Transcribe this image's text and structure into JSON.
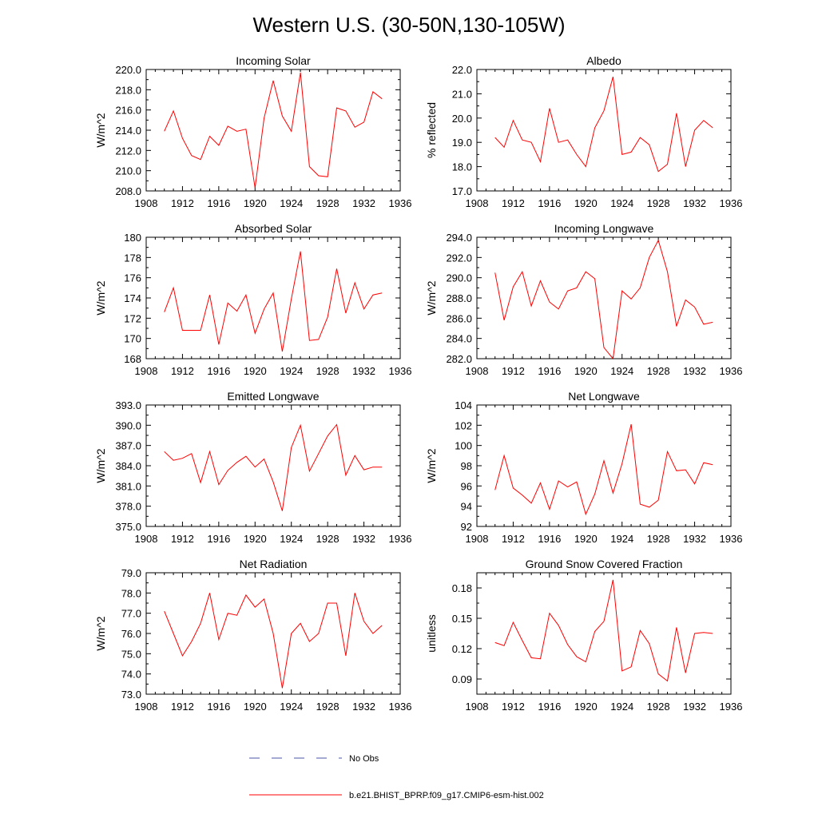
{
  "figure": {
    "title": "Western U.S. (30-50N,130-105W)"
  },
  "legend": {
    "entries": [
      {
        "label": "No Obs",
        "color": "#4b55a6",
        "dash": true
      },
      {
        "label": "b.e21.BHIST_BPRP.f09_g17.CMIP6-esm-hist.002",
        "color": "#ff0000",
        "dash": false
      }
    ]
  },
  "chart_data": [
    {
      "type": "line",
      "title": "Incoming Solar",
      "ylabel": "W/m^2",
      "xlim": [
        1908,
        1936
      ],
      "ylim": [
        208.0,
        220.0
      ],
      "xticks": [
        "1908",
        "1912",
        "1916",
        "1920",
        "1924",
        "1928",
        "1932",
        "1936"
      ],
      "yticks": [
        "208.0",
        "210.0",
        "212.0",
        "214.0",
        "216.0",
        "218.0",
        "220.0"
      ],
      "x": [
        1910,
        1911,
        1912,
        1913,
        1914,
        1915,
        1916,
        1917,
        1918,
        1919,
        1920,
        1921,
        1922,
        1923,
        1924,
        1925,
        1926,
        1927,
        1928,
        1929,
        1930,
        1931,
        1932,
        1933,
        1934
      ],
      "series": [
        {
          "name": "b.e21.BHIST_BPRP.f09_g17.CMIP6-esm-hist.002",
          "color": "#ff0000",
          "values": [
            213.9,
            215.9,
            213.2,
            211.5,
            211.1,
            213.4,
            212.5,
            214.4,
            213.9,
            214.1,
            208.3,
            215.2,
            218.9,
            215.4,
            213.9,
            219.7,
            210.4,
            209.5,
            209.4,
            216.2,
            215.9,
            214.3,
            214.8,
            217.8,
            217.1
          ]
        }
      ]
    },
    {
      "type": "line",
      "title": "Albedo",
      "ylabel": "% reflected",
      "xlim": [
        1908,
        1936
      ],
      "ylim": [
        17.0,
        22.0
      ],
      "xticks": [
        "1908",
        "1912",
        "1916",
        "1920",
        "1924",
        "1928",
        "1932",
        "1936"
      ],
      "yticks": [
        "17.0",
        "18.0",
        "19.0",
        "20.0",
        "21.0",
        "22.0"
      ],
      "x": [
        1910,
        1911,
        1912,
        1913,
        1914,
        1915,
        1916,
        1917,
        1918,
        1919,
        1920,
        1921,
        1922,
        1923,
        1924,
        1925,
        1926,
        1927,
        1928,
        1929,
        1930,
        1931,
        1932,
        1933,
        1934
      ],
      "series": [
        {
          "name": "b.e21.BHIST_BPRP.f09_g17.CMIP6-esm-hist.002",
          "color": "#ff0000",
          "values": [
            19.2,
            18.8,
            19.9,
            19.1,
            19.0,
            18.2,
            20.4,
            19.0,
            19.1,
            18.5,
            18.0,
            19.6,
            20.3,
            21.7,
            18.5,
            18.6,
            19.2,
            18.9,
            17.8,
            18.1,
            20.2,
            18.0,
            19.5,
            19.9,
            19.6
          ]
        }
      ]
    },
    {
      "type": "line",
      "title": "Absorbed Solar",
      "ylabel": "W/m^2",
      "xlim": [
        1908,
        1936
      ],
      "ylim": [
        168,
        180
      ],
      "xticks": [
        "1908",
        "1912",
        "1916",
        "1920",
        "1924",
        "1928",
        "1932",
        "1936"
      ],
      "yticks": [
        "168",
        "170",
        "172",
        "174",
        "176",
        "178",
        "180"
      ],
      "x": [
        1910,
        1911,
        1912,
        1913,
        1914,
        1915,
        1916,
        1917,
        1918,
        1919,
        1920,
        1921,
        1922,
        1923,
        1924,
        1925,
        1926,
        1927,
        1928,
        1929,
        1930,
        1931,
        1932,
        1933,
        1934
      ],
      "series": [
        {
          "name": "b.e21.BHIST_BPRP.f09_g17.CMIP6-esm-hist.002",
          "color": "#ff0000",
          "values": [
            172.6,
            175.0,
            170.8,
            170.8,
            170.8,
            174.3,
            169.4,
            173.5,
            172.7,
            174.3,
            170.5,
            172.9,
            174.5,
            168.7,
            173.9,
            178.6,
            169.8,
            169.9,
            172.1,
            176.9,
            172.5,
            175.5,
            172.9,
            174.3,
            174.5
          ]
        }
      ]
    },
    {
      "type": "line",
      "title": "Incoming Longwave",
      "ylabel": "W/m^2",
      "xlim": [
        1908,
        1936
      ],
      "ylim": [
        282.0,
        294.0
      ],
      "xticks": [
        "1908",
        "1912",
        "1916",
        "1920",
        "1924",
        "1928",
        "1932",
        "1936"
      ],
      "yticks": [
        "282.0",
        "284.0",
        "286.0",
        "288.0",
        "290.0",
        "292.0",
        "294.0"
      ],
      "x": [
        1910,
        1911,
        1912,
        1913,
        1914,
        1915,
        1916,
        1917,
        1918,
        1919,
        1920,
        1921,
        1922,
        1923,
        1924,
        1925,
        1926,
        1927,
        1928,
        1929,
        1930,
        1931,
        1932,
        1933,
        1934
      ],
      "series": [
        {
          "name": "b.e21.BHIST_BPRP.f09_g17.CMIP6-esm-hist.002",
          "color": "#ff0000",
          "values": [
            290.5,
            285.8,
            289.1,
            290.6,
            287.2,
            289.7,
            287.6,
            286.9,
            288.7,
            289.0,
            290.6,
            289.9,
            283.1,
            282.0,
            288.7,
            287.9,
            289.0,
            292.0,
            293.7,
            290.6,
            285.2,
            287.8,
            287.1,
            285.4,
            285.6
          ]
        }
      ]
    },
    {
      "type": "line",
      "title": "Emitted Longwave",
      "ylabel": "W/m^2",
      "xlim": [
        1908,
        1936
      ],
      "ylim": [
        375.0,
        393.0
      ],
      "xticks": [
        "1908",
        "1912",
        "1916",
        "1920",
        "1924",
        "1928",
        "1932",
        "1936"
      ],
      "yticks": [
        "375.0",
        "378.0",
        "381.0",
        "384.0",
        "387.0",
        "390.0",
        "393.0"
      ],
      "x": [
        1910,
        1911,
        1912,
        1913,
        1914,
        1915,
        1916,
        1917,
        1918,
        1919,
        1920,
        1921,
        1922,
        1923,
        1924,
        1925,
        1926,
        1927,
        1928,
        1929,
        1930,
        1931,
        1932,
        1933,
        1934
      ],
      "series": [
        {
          "name": "b.e21.BHIST_BPRP.f09_g17.CMIP6-esm-hist.002",
          "color": "#ff0000",
          "values": [
            386.1,
            384.8,
            385.1,
            385.8,
            381.5,
            386.1,
            381.2,
            383.3,
            384.5,
            385.4,
            383.8,
            385.0,
            381.6,
            377.3,
            386.7,
            390.0,
            383.2,
            385.8,
            388.4,
            390.1,
            382.6,
            385.5,
            383.4,
            383.8,
            383.8
          ]
        }
      ]
    },
    {
      "type": "line",
      "title": "Net Longwave",
      "ylabel": "W/m^2",
      "xlim": [
        1908,
        1936
      ],
      "ylim": [
        92,
        104
      ],
      "xticks": [
        "1908",
        "1912",
        "1916",
        "1920",
        "1924",
        "1928",
        "1932",
        "1936"
      ],
      "yticks": [
        "92",
        "94",
        "96",
        "98",
        "100",
        "102",
        "104"
      ],
      "x": [
        1910,
        1911,
        1912,
        1913,
        1914,
        1915,
        1916,
        1917,
        1918,
        1919,
        1920,
        1921,
        1922,
        1923,
        1924,
        1925,
        1926,
        1927,
        1928,
        1929,
        1930,
        1931,
        1932,
        1933,
        1934
      ],
      "series": [
        {
          "name": "b.e21.BHIST_BPRP.f09_g17.CMIP6-esm-hist.002",
          "color": "#ff0000",
          "values": [
            95.6,
            99.0,
            95.8,
            95.1,
            94.3,
            96.3,
            93.7,
            96.5,
            95.9,
            96.4,
            93.2,
            95.2,
            98.5,
            95.3,
            98.2,
            102.1,
            94.2,
            93.9,
            94.6,
            99.4,
            97.5,
            97.6,
            96.2,
            98.3,
            98.1
          ]
        }
      ]
    },
    {
      "type": "line",
      "title": "Net Radiation",
      "ylabel": "W/m^2",
      "xlim": [
        1908,
        1936
      ],
      "ylim": [
        73.0,
        79.0
      ],
      "xticks": [
        "1908",
        "1912",
        "1916",
        "1920",
        "1924",
        "1928",
        "1932",
        "1936"
      ],
      "yticks": [
        "73.0",
        "74.0",
        "75.0",
        "76.0",
        "77.0",
        "78.0",
        "79.0"
      ],
      "x": [
        1910,
        1911,
        1912,
        1913,
        1914,
        1915,
        1916,
        1917,
        1918,
        1919,
        1920,
        1921,
        1922,
        1923,
        1924,
        1925,
        1926,
        1927,
        1928,
        1929,
        1930,
        1931,
        1932,
        1933,
        1934
      ],
      "series": [
        {
          "name": "b.e21.BHIST_BPRP.f09_g17.CMIP6-esm-hist.002",
          "color": "#ff0000",
          "values": [
            77.1,
            76.0,
            74.9,
            75.6,
            76.5,
            78.0,
            75.7,
            77.0,
            76.9,
            77.9,
            77.3,
            77.7,
            76.0,
            73.3,
            76.0,
            76.5,
            75.6,
            76.0,
            77.5,
            77.5,
            74.9,
            78.0,
            76.6,
            76.0,
            76.4
          ]
        }
      ]
    },
    {
      "type": "line",
      "title": "Ground Snow Covered Fraction",
      "ylabel": "unitless",
      "xlim": [
        1908,
        1936
      ],
      "ylim": [
        0.075,
        0.195
      ],
      "xticks": [
        "1908",
        "1912",
        "1916",
        "1920",
        "1924",
        "1928",
        "1932",
        "1936"
      ],
      "yticks": [
        "0.09",
        "0.12",
        "0.15",
        "0.18"
      ],
      "ytick_values": [
        0.09,
        0.12,
        0.15,
        0.18
      ],
      "x": [
        1910,
        1911,
        1912,
        1913,
        1914,
        1915,
        1916,
        1917,
        1918,
        1919,
        1920,
        1921,
        1922,
        1923,
        1924,
        1925,
        1926,
        1927,
        1928,
        1929,
        1930,
        1931,
        1932,
        1933,
        1934
      ],
      "series": [
        {
          "name": "b.e21.BHIST_BPRP.f09_g17.CMIP6-esm-hist.002",
          "color": "#ff0000",
          "values": [
            0.126,
            0.123,
            0.146,
            0.128,
            0.111,
            0.11,
            0.155,
            0.143,
            0.124,
            0.112,
            0.107,
            0.137,
            0.147,
            0.188,
            0.098,
            0.102,
            0.138,
            0.125,
            0.095,
            0.088,
            0.141,
            0.096,
            0.135,
            0.136,
            0.135
          ]
        }
      ]
    }
  ]
}
